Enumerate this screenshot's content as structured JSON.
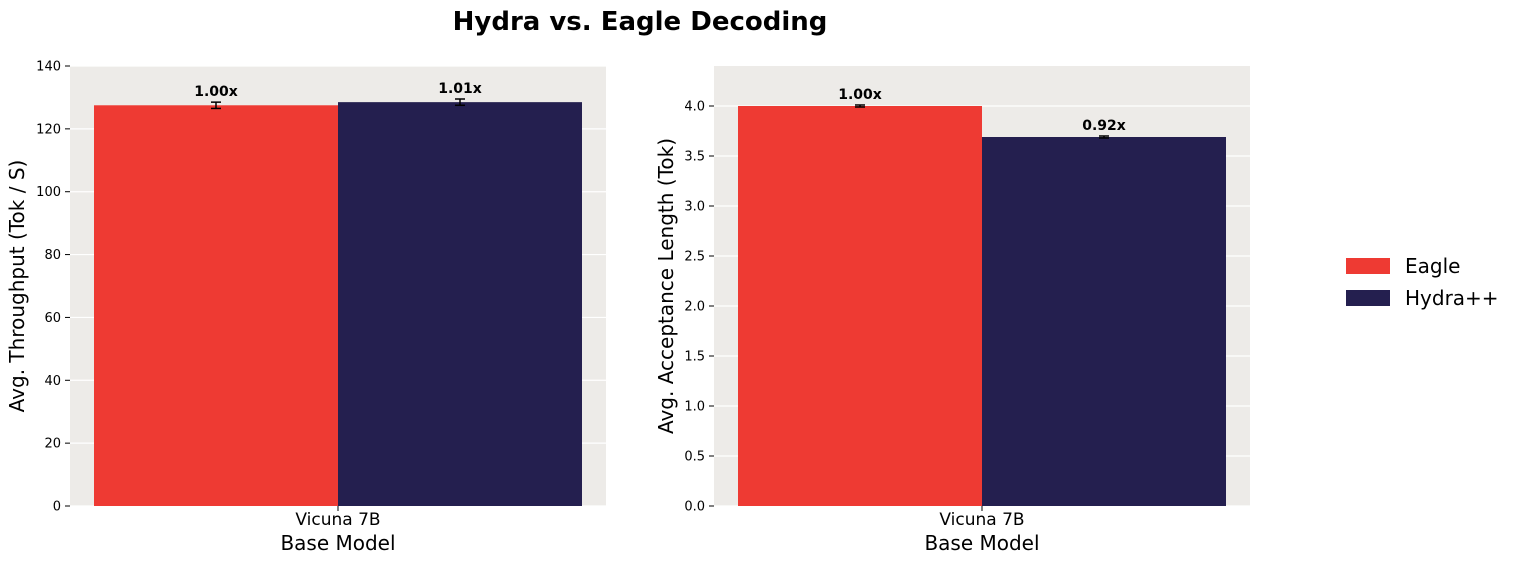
{
  "figure": {
    "title": "Hydra vs. Eagle Decoding"
  },
  "colors": {
    "Eagle": "#ee3a33",
    "Hydra++": "#241f4f",
    "panel_bg": "#edebe8",
    "grid": "#ffffff"
  },
  "legend": {
    "placement": "right",
    "entries": [
      "Eagle",
      "Hydra++"
    ]
  },
  "chart_data": [
    {
      "type": "bar",
      "categories": [
        "Vicuna 7B"
      ],
      "series": [
        {
          "name": "Eagle",
          "values": [
            127.5
          ],
          "error": [
            1.0
          ],
          "labels": [
            "1.00x"
          ]
        },
        {
          "name": "Hydra++",
          "values": [
            128.5
          ],
          "error": [
            1.0
          ],
          "labels": [
            "1.01x"
          ]
        }
      ],
      "xlabel": "Base Model",
      "ylabel": "Avg. Throughput (Tok / S)",
      "ylim": [
        0,
        140
      ],
      "yticks": [
        0,
        20,
        40,
        60,
        80,
        100,
        120,
        140
      ],
      "ytick_labels": [
        "0",
        "20",
        "40",
        "60",
        "80",
        "100",
        "120",
        "140"
      ],
      "grid": true
    },
    {
      "type": "bar",
      "categories": [
        "Vicuna 7B"
      ],
      "series": [
        {
          "name": "Eagle",
          "values": [
            4.0
          ],
          "error": [
            0.01
          ],
          "labels": [
            "1.00x"
          ]
        },
        {
          "name": "Hydra++",
          "values": [
            3.69
          ],
          "error": [
            0.01
          ],
          "labels": [
            "0.92x"
          ]
        }
      ],
      "xlabel": "Base Model",
      "ylabel": "Avg. Acceptance Length (Tok)",
      "ylim": [
        0,
        4.4
      ],
      "yticks": [
        0,
        0.5,
        1.0,
        1.5,
        2.0,
        2.5,
        3.0,
        3.5,
        4.0
      ],
      "ytick_labels": [
        "0.0",
        "0.5",
        "1.0",
        "1.5",
        "2.0",
        "2.5",
        "3.0",
        "3.5",
        "4.0"
      ],
      "grid": true
    }
  ]
}
